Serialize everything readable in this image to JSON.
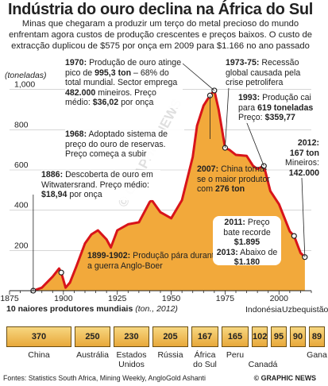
{
  "title": "Indústria do ouro declina na África do Sul",
  "subtitle": "Minas que chegaram a produzir um terço do metal precioso do mundo enfrentam agora custos de produção crescentes e preços baixos. O custo de extracção duplicou de $575 por onça em 2009 para $1.166 no ano passado",
  "colors": {
    "area_fill": "#f2a93b",
    "line": "#d8141a",
    "bar_fill": "#f2c15c",
    "text": "#222222"
  },
  "chart_data": [
    {
      "type": "area",
      "ylabel": "(toneladas)",
      "xlim": [
        1875,
        2015
      ],
      "ylim": [
        0,
        1050
      ],
      "x_ticks": [
        1875,
        1900,
        1925,
        1950,
        1975,
        2000
      ],
      "y_ticks": [
        200,
        400,
        600,
        800,
        1000
      ],
      "y_tick_labels": [
        "200",
        "400",
        "600",
        "800",
        "1,000"
      ],
      "grid": "horizontal",
      "series": [
        {
          "x": [
            1886,
            1890,
            1895,
            1898,
            1899,
            1901,
            1903,
            1906,
            1910,
            1913,
            1916,
            1920,
            1922,
            1925,
            1930,
            1935,
            1940,
            1941,
            1945,
            1950,
            1955,
            1960,
            1962,
            1965,
            1968,
            1970,
            1972,
            1975,
            1977,
            1980,
            1985,
            1988,
            1990,
            1993,
            1996,
            2000,
            2005,
            2007,
            2010,
            2012
          ],
          "y": [
            0,
            15,
            70,
            110,
            90,
            15,
            40,
            120,
            235,
            280,
            300,
            255,
            215,
            300,
            330,
            340,
            440,
            450,
            390,
            360,
            450,
            665,
            820,
            920,
            970,
            995,
            900,
            710,
            700,
            675,
            670,
            620,
            605,
            620,
            495,
            430,
            295,
            272,
            188,
            167
          ]
        }
      ]
    },
    {
      "type": "bar",
      "title": "10 naiores produtores mundiais",
      "subtitle": "(ton., 2012)",
      "categories": [
        "China",
        "Austrália",
        "Estados Unidos",
        "Rússia",
        "África do Sul",
        "Peru",
        "Canadá",
        "Indonésia",
        "Uzbequistão",
        "Gana"
      ],
      "values": [
        370,
        250,
        230,
        205,
        167,
        165,
        102,
        95,
        90,
        89
      ]
    }
  ],
  "annotations": {
    "a1886": {
      "year": "1886:",
      "text": "Descoberta de ouro em Witwatersrand. Preço médio:",
      "price": "$18,94",
      "tail": "por onça"
    },
    "a1899": {
      "year": "1899-1902:",
      "text": "Produção pára durante a guerra Anglo-Boer"
    },
    "a1968": {
      "year": "1968:",
      "text": "Adoptado sistema de preço do ouro de reservas. Preço começa a subir"
    },
    "a1970": {
      "year": "1970:",
      "t1": "Produção de ouro atinge pico de",
      "peak": "995,3 ton",
      "t2": "– 68% do total mundial. Sector emprega",
      "jobs": "482.000",
      "t3": "mineiros. Preço médio:",
      "price": "$36,02",
      "tail": "por onça"
    },
    "a1973": {
      "year": "1973-75:",
      "text": "Recessão global causada pela crise petrolifera"
    },
    "a1993": {
      "year": "1993:",
      "t1": "Produção cai para",
      "tons": "619 toneladas",
      "t2": "Preço:",
      "price": "$359,77"
    },
    "a2007": {
      "year": "2007:",
      "t1": "China torna-se o maior produtor com",
      "tons": "276 ton"
    },
    "a2012": {
      "year": "2012:",
      "tons": "167 ton",
      "label": "Mineiros:",
      "miners": "142.000"
    },
    "a2011": {
      "year": "2011:",
      "t1": "Preço bate recorde",
      "price": "$1.895",
      "year2": "2013:",
      "t2": "Abaixo de",
      "price2": "$1.180"
    }
  },
  "watermark": "© GRAPHIC NEWS",
  "footer": {
    "source": "Fontes: Statistics South Africa, Mining Weekly, AngloGold Ashanti",
    "credit": "© GRAPHIC NEWS"
  }
}
